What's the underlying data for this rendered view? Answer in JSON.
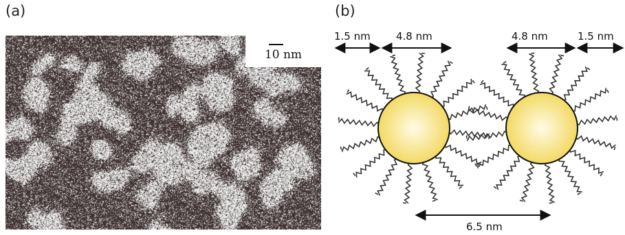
{
  "panels": {
    "a": {
      "label": "(a)",
      "scale_bar_label": "10 nm",
      "colors": {
        "background": "#3a2a2a",
        "particles": "#e8e2e2"
      }
    },
    "b": {
      "label": "(b)",
      "dimensions": {
        "ligand_left": "1.5 nm",
        "core_left": "4.8 nm",
        "core_right": "4.8 nm",
        "ligand_right": "1.5 nm",
        "center_spacing": "6.5 nm"
      },
      "colors": {
        "core": "#f2d655",
        "core_highlight": "#fffbe6",
        "ligand": "#333333"
      }
    }
  }
}
